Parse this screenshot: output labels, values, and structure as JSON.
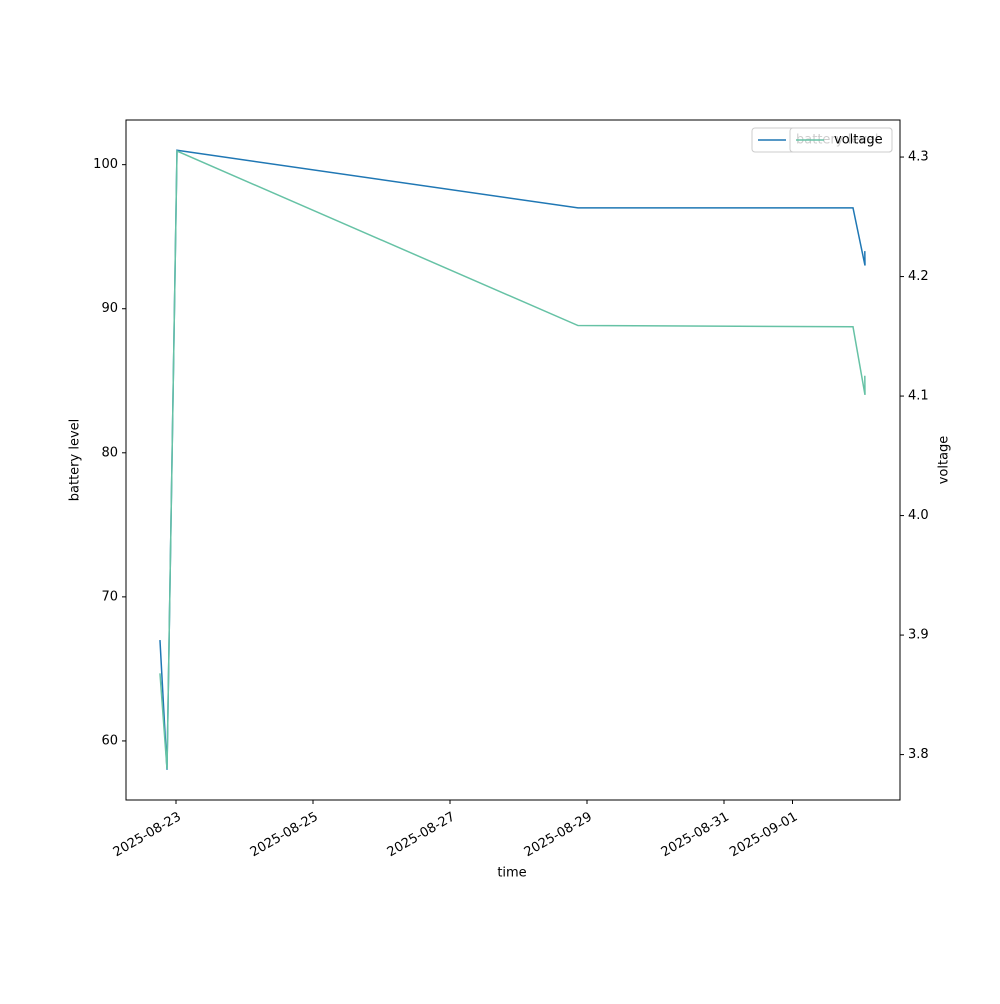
{
  "chart_data": {
    "type": "line",
    "xlabel": "time",
    "ylabel": "battery level",
    "y2label": "voltage",
    "x": [
      "2025-08-22T18:23",
      "2025-08-22T20:51",
      "2025-08-23T00:21",
      "2025-08-28T20:51",
      "2025-09-01T21:12",
      "2025-09-02T01:24",
      "2025-09-02T01:20"
    ],
    "series": [
      {
        "name": "battery level",
        "color": "#1f77b4",
        "values": [
          67,
          58,
          101,
          97,
          97,
          93,
          94
        ]
      },
      {
        "name": "voltage",
        "color": "#66c2a5",
        "axis": "y2",
        "values": [
          3.868,
          3.788,
          4.305,
          4.159,
          4.158,
          4.101,
          4.117
        ]
      }
    ],
    "xlim": [
      "2025-08-22T06:29",
      "2025-09-02T13:40"
    ],
    "xticks": [
      "2025-08-23",
      "2025-08-25",
      "2025-08-27",
      "2025-08-29",
      "2025-08-31",
      "2025-09-01"
    ],
    "ylim": [
      55.9,
      103.1
    ],
    "yticks": [
      60,
      70,
      80,
      90,
      100
    ],
    "y2lim": [
      3.762,
      4.331
    ],
    "y2ticks": [
      3.8,
      3.9,
      {
        "value": 4,
        "label": "4.0"
      },
      4.1,
      4.2,
      4.3
    ],
    "legend": "upper right"
  }
}
